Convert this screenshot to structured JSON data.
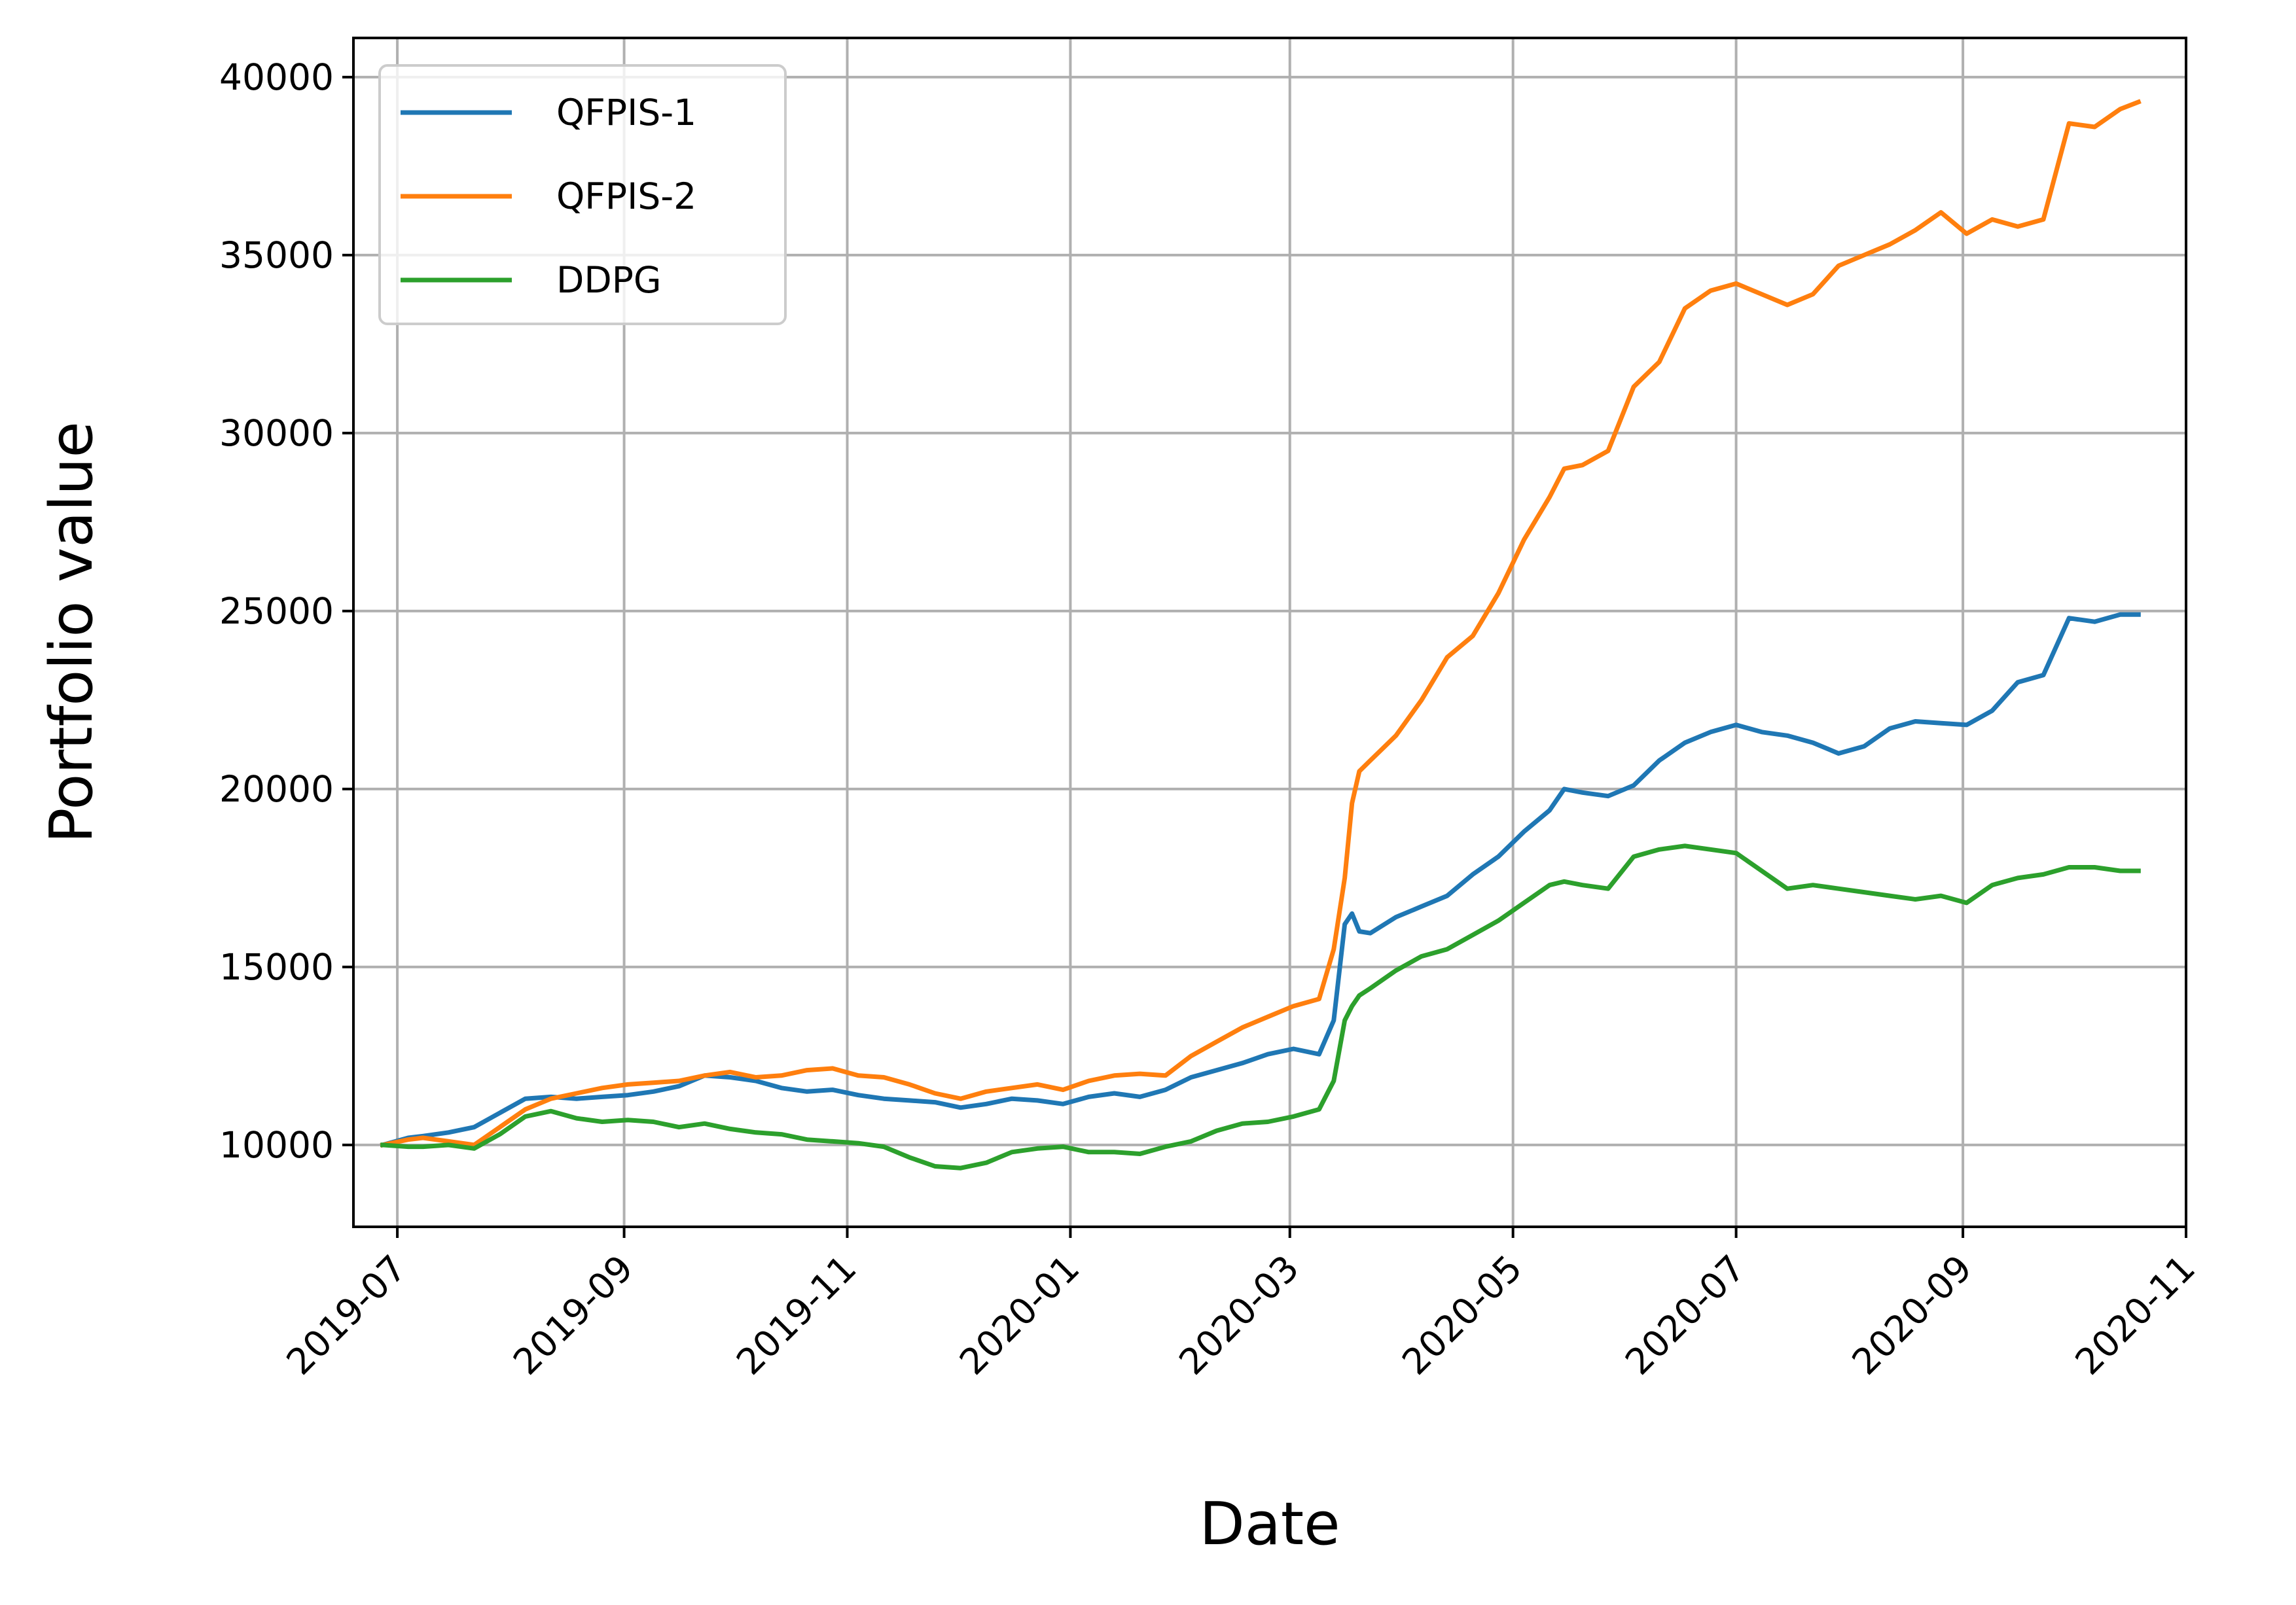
{
  "chart_data": {
    "type": "line",
    "xlabel": "Date",
    "ylabel": "Portfolio value",
    "xlim": [
      "2019-06-19",
      "2020-11-01"
    ],
    "ylim": [
      7700,
      41100
    ],
    "grid": true,
    "legend_position": "top-left",
    "x_ticks": [
      "2019-07-01",
      "2019-09-01",
      "2019-11-01",
      "2020-01-01",
      "2020-03-01",
      "2020-05-01",
      "2020-07-01",
      "2020-09-01",
      "2020-11-01"
    ],
    "x_tick_labels": [
      "2019-07",
      "2019-09",
      "2019-11",
      "2020-01",
      "2020-03",
      "2020-05",
      "2020-07",
      "2020-09",
      "2020-11"
    ],
    "y_ticks": [
      10000,
      15000,
      20000,
      25000,
      30000,
      35000,
      40000
    ],
    "y_tick_labels": [
      "10000",
      "15000",
      "20000",
      "25000",
      "30000",
      "35000",
      "40000"
    ],
    "series": [
      {
        "name": "QFPIS-1",
        "color": "#1f77b4",
        "x": [
          "2019-06-27",
          "2019-07-04",
          "2019-07-08",
          "2019-07-15",
          "2019-07-22",
          "2019-07-29",
          "2019-08-05",
          "2019-08-12",
          "2019-08-19",
          "2019-08-26",
          "2019-09-02",
          "2019-09-09",
          "2019-09-16",
          "2019-09-23",
          "2019-09-30",
          "2019-10-07",
          "2019-10-14",
          "2019-10-21",
          "2019-10-28",
          "2019-11-04",
          "2019-11-11",
          "2019-11-18",
          "2019-11-25",
          "2019-12-02",
          "2019-12-09",
          "2019-12-16",
          "2019-12-23",
          "2019-12-30",
          "2020-01-06",
          "2020-01-13",
          "2020-01-20",
          "2020-01-27",
          "2020-02-03",
          "2020-02-10",
          "2020-02-17",
          "2020-02-24",
          "2020-03-02",
          "2020-03-09",
          "2020-03-13",
          "2020-03-16",
          "2020-03-18",
          "2020-03-20",
          "2020-03-23",
          "2020-03-30",
          "2020-04-06",
          "2020-04-13",
          "2020-04-20",
          "2020-04-27",
          "2020-05-04",
          "2020-05-11",
          "2020-05-15",
          "2020-05-20",
          "2020-05-27",
          "2020-06-03",
          "2020-06-10",
          "2020-06-17",
          "2020-06-24",
          "2020-07-01",
          "2020-07-08",
          "2020-07-15",
          "2020-07-22",
          "2020-07-29",
          "2020-08-05",
          "2020-08-12",
          "2020-08-19",
          "2020-08-26",
          "2020-09-02",
          "2020-09-09",
          "2020-09-16",
          "2020-09-23",
          "2020-09-30",
          "2020-10-07",
          "2020-10-14",
          "2020-10-19"
        ],
        "y": [
          10000,
          10200,
          10250,
          10350,
          10500,
          10900,
          11300,
          11350,
          11300,
          11350,
          11400,
          11500,
          11650,
          11950,
          11900,
          11800,
          11600,
          11500,
          11550,
          11400,
          11300,
          11250,
          11200,
          11050,
          11150,
          11300,
          11250,
          11150,
          11350,
          11450,
          11350,
          11550,
          11900,
          12100,
          12300,
          12550,
          12700,
          12550,
          13500,
          16200,
          16500,
          16000,
          15950,
          16400,
          16700,
          17000,
          17600,
          18100,
          18800,
          19400,
          20000,
          19900,
          19800,
          20100,
          20800,
          21300,
          21600,
          21800,
          21600,
          21500,
          21300,
          21000,
          21200,
          21700,
          21900,
          21850,
          21800,
          22200,
          23000,
          23200,
          24800,
          24700,
          24900,
          24900
        ]
      },
      {
        "name": "QFPIS-2",
        "color": "#ff7f0e",
        "x": [
          "2019-06-27",
          "2019-07-04",
          "2019-07-08",
          "2019-07-15",
          "2019-07-22",
          "2019-07-29",
          "2019-08-05",
          "2019-08-12",
          "2019-08-19",
          "2019-08-26",
          "2019-09-02",
          "2019-09-09",
          "2019-09-16",
          "2019-09-23",
          "2019-09-30",
          "2019-10-07",
          "2019-10-14",
          "2019-10-21",
          "2019-10-28",
          "2019-11-04",
          "2019-11-11",
          "2019-11-18",
          "2019-11-25",
          "2019-12-02",
          "2019-12-09",
          "2019-12-16",
          "2019-12-23",
          "2019-12-30",
          "2020-01-06",
          "2020-01-13",
          "2020-01-20",
          "2020-01-27",
          "2020-02-03",
          "2020-02-10",
          "2020-02-17",
          "2020-02-24",
          "2020-03-02",
          "2020-03-09",
          "2020-03-13",
          "2020-03-16",
          "2020-03-18",
          "2020-03-20",
          "2020-03-23",
          "2020-03-30",
          "2020-04-06",
          "2020-04-13",
          "2020-04-20",
          "2020-04-27",
          "2020-05-04",
          "2020-05-11",
          "2020-05-15",
          "2020-05-20",
          "2020-05-27",
          "2020-06-03",
          "2020-06-10",
          "2020-06-17",
          "2020-06-24",
          "2020-07-01",
          "2020-07-08",
          "2020-07-15",
          "2020-07-22",
          "2020-07-29",
          "2020-08-05",
          "2020-08-12",
          "2020-08-19",
          "2020-08-26",
          "2020-09-02",
          "2020-09-09",
          "2020-09-16",
          "2020-09-23",
          "2020-09-30",
          "2020-10-07",
          "2020-10-14",
          "2020-10-19"
        ],
        "y": [
          10000,
          10150,
          10200,
          10100,
          10000,
          10500,
          11000,
          11300,
          11450,
          11600,
          11700,
          11750,
          11800,
          11950,
          12050,
          11900,
          11950,
          12100,
          12150,
          11950,
          11900,
          11700,
          11450,
          11300,
          11500,
          11600,
          11700,
          11550,
          11800,
          11950,
          12000,
          11950,
          12500,
          12900,
          13300,
          13600,
          13900,
          14100,
          15500,
          17500,
          19600,
          20500,
          20800,
          21500,
          22500,
          23700,
          24300,
          25500,
          27000,
          28200,
          29000,
          29100,
          29500,
          31300,
          32000,
          33500,
          34000,
          34200,
          33900,
          33600,
          33900,
          34700,
          35000,
          35300,
          35700,
          36200,
          35600,
          36000,
          35800,
          36000,
          38700,
          38600,
          39100,
          39300
        ]
      },
      {
        "name": "DDPG",
        "color": "#2ca02c",
        "x": [
          "2019-06-27",
          "2019-07-04",
          "2019-07-08",
          "2019-07-15",
          "2019-07-22",
          "2019-07-29",
          "2019-08-05",
          "2019-08-12",
          "2019-08-19",
          "2019-08-26",
          "2019-09-02",
          "2019-09-09",
          "2019-09-16",
          "2019-09-23",
          "2019-09-30",
          "2019-10-07",
          "2019-10-14",
          "2019-10-21",
          "2019-10-28",
          "2019-11-04",
          "2019-11-11",
          "2019-11-18",
          "2019-11-25",
          "2019-12-02",
          "2019-12-09",
          "2019-12-16",
          "2019-12-23",
          "2019-12-30",
          "2020-01-06",
          "2020-01-13",
          "2020-01-20",
          "2020-01-27",
          "2020-02-03",
          "2020-02-10",
          "2020-02-17",
          "2020-02-24",
          "2020-03-02",
          "2020-03-09",
          "2020-03-13",
          "2020-03-16",
          "2020-03-18",
          "2020-03-20",
          "2020-03-23",
          "2020-03-30",
          "2020-04-06",
          "2020-04-13",
          "2020-04-20",
          "2020-04-27",
          "2020-05-04",
          "2020-05-11",
          "2020-05-15",
          "2020-05-20",
          "2020-05-27",
          "2020-06-03",
          "2020-06-10",
          "2020-06-17",
          "2020-06-24",
          "2020-07-01",
          "2020-07-08",
          "2020-07-15",
          "2020-07-22",
          "2020-07-29",
          "2020-08-05",
          "2020-08-12",
          "2020-08-19",
          "2020-08-26",
          "2020-09-02",
          "2020-09-09",
          "2020-09-16",
          "2020-09-23",
          "2020-09-30",
          "2020-10-07",
          "2020-10-14",
          "2020-10-19"
        ],
        "y": [
          10000,
          9950,
          9950,
          10000,
          9900,
          10300,
          10800,
          10950,
          10750,
          10650,
          10700,
          10650,
          10500,
          10600,
          10450,
          10350,
          10300,
          10150,
          10100,
          10050,
          9950,
          9650,
          9400,
          9350,
          9500,
          9800,
          9900,
          9950,
          9800,
          9800,
          9750,
          9950,
          10100,
          10400,
          10600,
          10650,
          10800,
          11000,
          11800,
          13500,
          13900,
          14200,
          14400,
          14900,
          15300,
          15500,
          15900,
          16300,
          16800,
          17300,
          17400,
          17300,
          17200,
          18100,
          18300,
          18400,
          18300,
          18200,
          17700,
          17200,
          17300,
          17200,
          17100,
          17000,
          16900,
          17000,
          16800,
          17300,
          17500,
          17600,
          17800,
          17800,
          17700,
          17700
        ]
      }
    ]
  }
}
